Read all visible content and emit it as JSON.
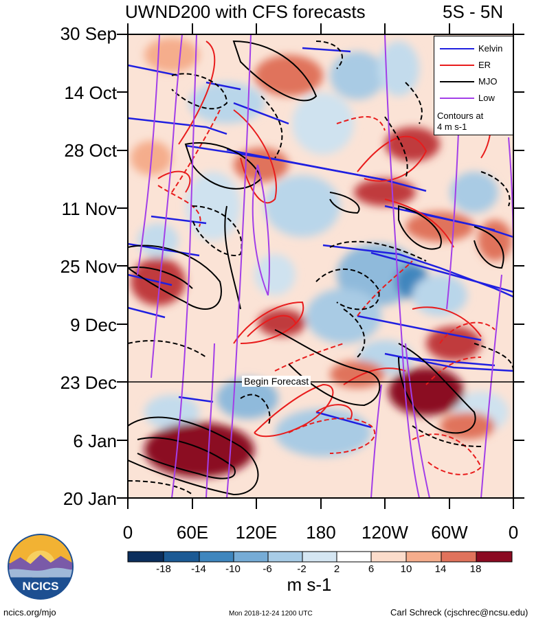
{
  "chart_data": {
    "type": "heatmap",
    "title": "UWND200 with CFS forecasts",
    "region": "5S - 5N",
    "y_tick_labels": [
      "30 Sep",
      "14 Oct",
      "28 Oct",
      "11 Nov",
      "25 Nov",
      "9 Dec",
      "23 Dec",
      "6 Jan",
      "20 Jan"
    ],
    "x_tick_labels": [
      "0",
      "60E",
      "120E",
      "180",
      "120W",
      "60W",
      "0"
    ],
    "x_range_deg_east": [
      0,
      360
    ],
    "forecast_line_label": "Begin Forecast",
    "forecast_start_date": "23 Dec",
    "colorbar": {
      "units": "m s-1",
      "tick_labels": [
        "-18",
        "-14",
        "-10",
        "-6",
        "-2",
        "2",
        "6",
        "10",
        "14",
        "18"
      ],
      "colors": [
        "#0b2e5c",
        "#1c5a94",
        "#3f86be",
        "#76acd6",
        "#a8cce6",
        "#d5e6f2",
        "#ffffff",
        "#fbdccb",
        "#f5ad8c",
        "#e0735c",
        "#c03a3e",
        "#8b0a22",
        "#5e0016"
      ]
    },
    "legend": {
      "entries": [
        {
          "name": "Kelvin",
          "color": "#1f1fe0"
        },
        {
          "name": "ER",
          "color": "#e81c1c"
        },
        {
          "name": "MJO",
          "color": "#000000"
        },
        {
          "name": "Low",
          "color": "#a23ee8"
        }
      ],
      "contour_note_line1": "Contours at",
      "contour_note_line2": "4 m s-1"
    }
  },
  "footer": {
    "left": "ncics.org/mjo",
    "middle": "Mon 2018-12-24 1200 UTC",
    "right": "Carl Schreck (cjschrec@ncsu.edu)"
  },
  "logo": {
    "text": "NCICS"
  }
}
